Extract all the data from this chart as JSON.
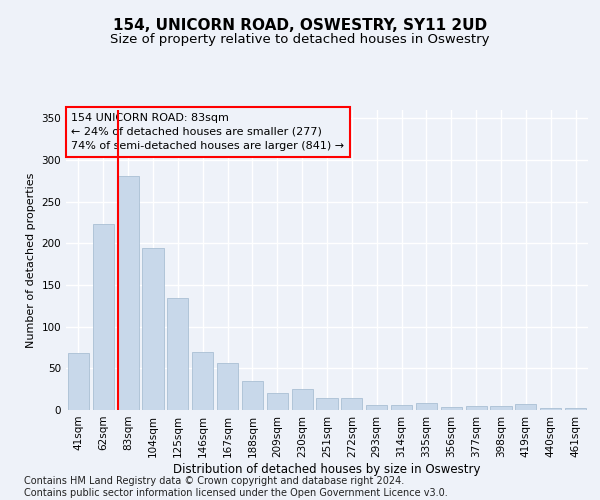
{
  "title": "154, UNICORN ROAD, OSWESTRY, SY11 2UD",
  "subtitle": "Size of property relative to detached houses in Oswestry",
  "xlabel": "Distribution of detached houses by size in Oswestry",
  "ylabel": "Number of detached properties",
  "footer_line1": "Contains HM Land Registry data © Crown copyright and database right 2024.",
  "footer_line2": "Contains public sector information licensed under the Open Government Licence v3.0.",
  "annotation_line1": "154 UNICORN ROAD: 83sqm",
  "annotation_line2": "← 24% of detached houses are smaller (277)",
  "annotation_line3": "74% of semi-detached houses are larger (841) →",
  "bar_color": "#c8d8ea",
  "bar_edge_color": "#aabfd4",
  "red_line_index": 2,
  "categories": [
    "41sqm",
    "62sqm",
    "83sqm",
    "104sqm",
    "125sqm",
    "146sqm",
    "167sqm",
    "188sqm",
    "209sqm",
    "230sqm",
    "251sqm",
    "272sqm",
    "293sqm",
    "314sqm",
    "335sqm",
    "356sqm",
    "377sqm",
    "398sqm",
    "419sqm",
    "440sqm",
    "461sqm"
  ],
  "values": [
    69,
    223,
    281,
    194,
    134,
    70,
    57,
    35,
    21,
    25,
    14,
    14,
    6,
    6,
    8,
    4,
    5,
    5,
    7,
    3,
    2
  ],
  "ylim": [
    0,
    360
  ],
  "yticks": [
    0,
    50,
    100,
    150,
    200,
    250,
    300,
    350
  ],
  "background_color": "#eef2f9",
  "grid_color": "#ffffff",
  "title_fontsize": 11,
  "subtitle_fontsize": 9.5,
  "ylabel_fontsize": 8,
  "xlabel_fontsize": 8.5,
  "tick_fontsize": 7.5,
  "annotation_fontsize": 8,
  "footer_fontsize": 7
}
